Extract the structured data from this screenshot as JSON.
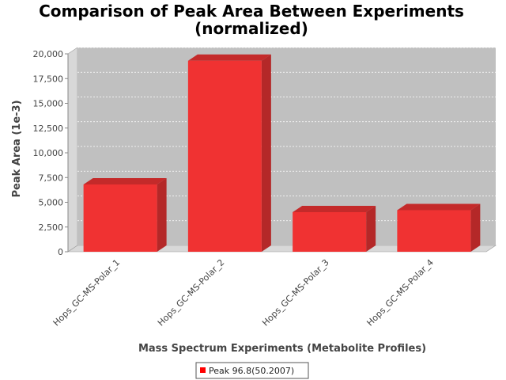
{
  "chart_data": {
    "type": "bar",
    "title": "Comparison of Peak Area Between Experiments",
    "subtitle": "(normalized)",
    "xlabel": "Mass Spectrum Experiments (Metabolite Profiles)",
    "ylabel": "Peak Area (1e-3)",
    "categories": [
      "Hops_GC-MS-Polar_1",
      "Hops_GC-MS-Polar_2",
      "Hops_GC-MS-Polar_3",
      "Hops_GC-MS-Polar_4"
    ],
    "series": [
      {
        "name": "Peak 96.8(50.2007)",
        "values": [
          6800,
          19300,
          4000,
          4200
        ]
      }
    ],
    "ylim": [
      0,
      20000
    ],
    "yticks": [
      0,
      2500,
      5000,
      7500,
      10000,
      12500,
      15000,
      17500,
      20000
    ],
    "ytick_labels": [
      "0",
      "2,500",
      "5,000",
      "7,500",
      "10,000",
      "12,500",
      "15,000",
      "17,500",
      "20,000"
    ],
    "grid": true,
    "legend_position": "bottom",
    "colors": {
      "bar_front": "#f03232",
      "bar_side": "#b42828",
      "bar_top": "#c42a2a",
      "plot_bg": "#c0c0c0",
      "wall": "#d8d8d8",
      "legend_swatch": "#ff0000"
    }
  }
}
